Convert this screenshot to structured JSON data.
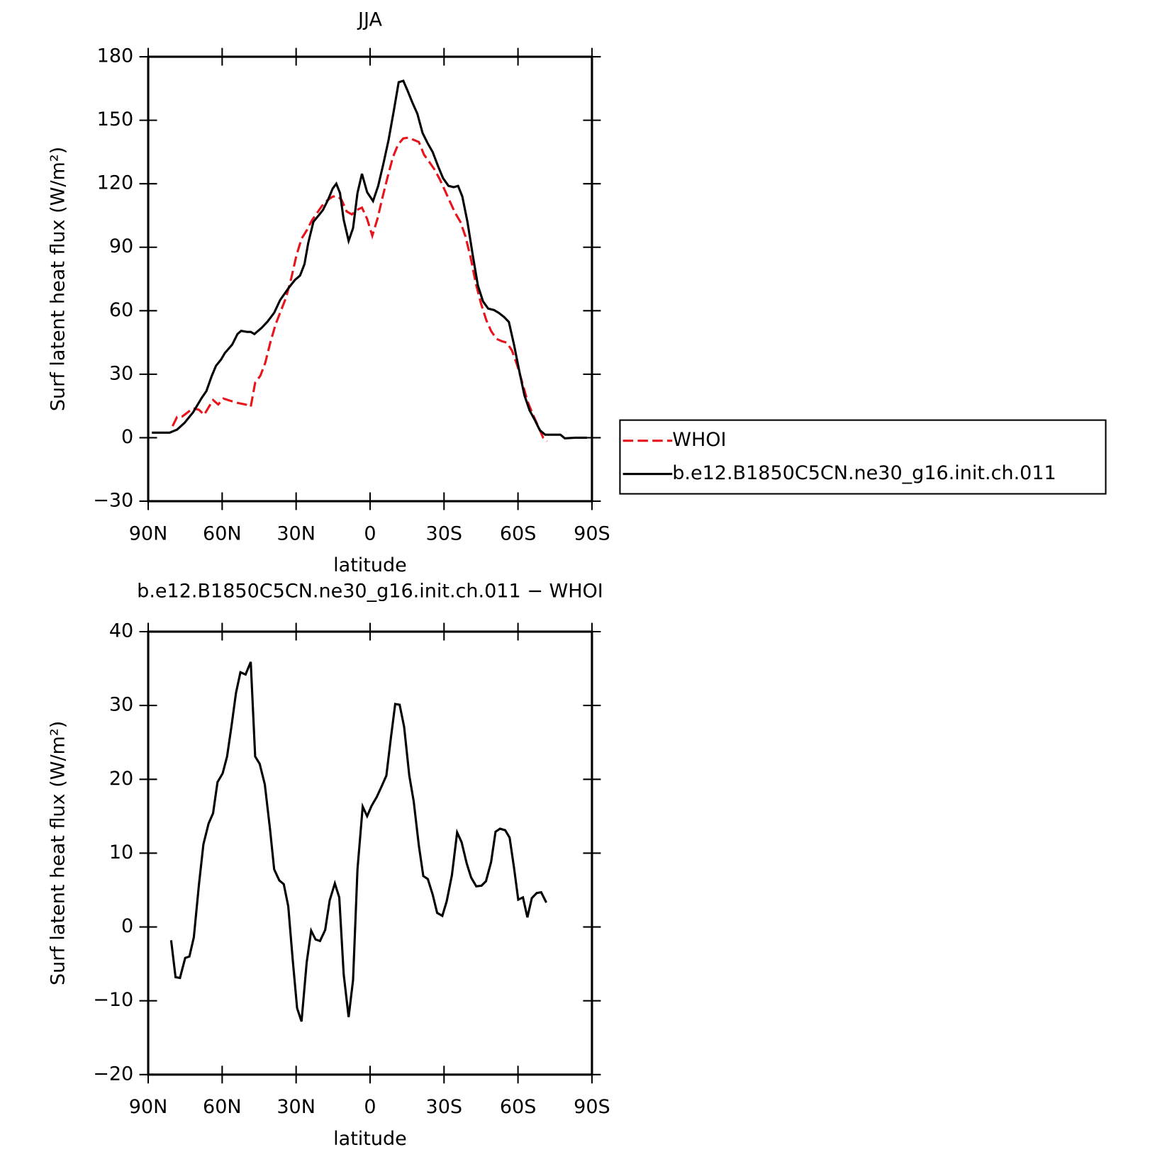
{
  "chart_data": [
    {
      "type": "line",
      "title": "JJA",
      "xlabel": "latitude",
      "ylabel": "Surf latent heat flux (W/m²)",
      "xlim": [
        90,
        -90
      ],
      "xticks": [
        {
          "value": 90,
          "label": "90N"
        },
        {
          "value": 60,
          "label": "60N"
        },
        {
          "value": 30,
          "label": "30N"
        },
        0,
        {
          "value": -30,
          "label": "30S"
        },
        {
          "value": -60,
          "label": "60S"
        },
        {
          "value": -90,
          "label": "90S"
        }
      ],
      "ylim": [
        -30,
        180
      ],
      "yticks": [
        {
          "value": -30,
          "label": "−30"
        },
        0,
        30,
        60,
        90,
        120,
        150,
        180
      ],
      "legend": "right",
      "series": [
        {
          "name": "WHOI",
          "color": "#e8141c",
          "dashed": true,
          "x": [
            80.1,
            78.3,
            76.2,
            74.2,
            71.8,
            69.4,
            67.3,
            65.5,
            63.7,
            61.6,
            59.5,
            56.5,
            53.5,
            50.5,
            48.4,
            46.6,
            44.5,
            42.5,
            40.4,
            38.3,
            36.2,
            34.1,
            32.0,
            29.9,
            27.8,
            25.7,
            23.6,
            21.5,
            19.4,
            17.3,
            15.2,
            13.4,
            11.6,
            9.5,
            7.4,
            5.4,
            3.3,
            1.2,
            -0.9,
            -3.0,
            -5.1,
            -7.2,
            -9.3,
            -11.4,
            -13.5,
            -15.6,
            -17.7,
            -19.8,
            -21.9,
            -24.0,
            -26.1,
            -28.2,
            -30.3,
            -32.4,
            -34.5,
            -36.6,
            -38.7,
            -40.8,
            -42.9,
            -45.0,
            -47.1,
            -49.2,
            -51.3,
            -53.4,
            -55.5,
            -57.6,
            -59.7,
            -61.8,
            -63.9,
            -66.0,
            -68.1,
            -70.2,
            -71.8
          ],
          "values": [
            5.5,
            9.8,
            10,
            11.8,
            13.9,
            13.2,
            10.8,
            14.3,
            17.8,
            15.7,
            18.5,
            17.4,
            16.4,
            15.7,
            14.6,
            26,
            29.3,
            35.5,
            45.3,
            53.6,
            59.9,
            66.2,
            75.2,
            86,
            94,
            97.9,
            102.7,
            106.2,
            109.7,
            112.2,
            113.9,
            114.2,
            112.5,
            106.9,
            105.5,
            107.6,
            108.7,
            103.4,
            95.4,
            103.4,
            113.9,
            123.6,
            132.7,
            138.6,
            141.4,
            141.8,
            140.7,
            139.7,
            133.7,
            130.3,
            126.8,
            122.3,
            117,
            111.5,
            106.2,
            102.1,
            95.1,
            85,
            72.8,
            63.4,
            55.7,
            50.2,
            46.7,
            45.6,
            44.9,
            41.1,
            34.1,
            25.8,
            17.1,
            11.1,
            5.6,
            0,
            -1.7
          ]
        },
        {
          "name": "b.e12.B1850C5CN.ne30_g16.init.ch.011",
          "color": "#000000",
          "dashed": false,
          "x": [
            88.5,
            81.3,
            78.3,
            75.3,
            71.8,
            68.2,
            66.4,
            64.3,
            62.5,
            60.4,
            58.9,
            55.9,
            53.8,
            52.3,
            49.9,
            48.4,
            46.9,
            43.9,
            41.5,
            38.9,
            36.5,
            32.9,
            30.5,
            28.4,
            26.6,
            25.1,
            23.0,
            20.9,
            19.1,
            17.0,
            15.2,
            13.7,
            12.2,
            10.7,
            8.7,
            6.9,
            5.1,
            3.3,
            1.2,
            -1.2,
            -3.3,
            -5.4,
            -7.5,
            -9.6,
            -11.6,
            -13.5,
            -15.3,
            -17.1,
            -19.2,
            -21.3,
            -23.4,
            -25.4,
            -27.5,
            -29.6,
            -31.8,
            -33.9,
            -35.7,
            -37.4,
            -39.5,
            -41.6,
            -43.7,
            -45.8,
            -47.9,
            -50.3,
            -52.3,
            -54.4,
            -56.3,
            -58.4,
            -60.5,
            -62.6,
            -64.7,
            -66.8,
            -68.9,
            -71.0,
            -72.7,
            -74.8,
            -77.2,
            -79.0,
            -83.2,
            -88.0
          ],
          "values": [
            2.4,
            2.4,
            3.8,
            7,
            12,
            19,
            22,
            29,
            34,
            37,
            40,
            44,
            49,
            50.5,
            50,
            50,
            49,
            52,
            55,
            59,
            65,
            71,
            74.5,
            76.6,
            82,
            92,
            102,
            105,
            107.6,
            112.5,
            117.7,
            120,
            115.6,
            103,
            93,
            99,
            115.6,
            124.7,
            116,
            111.8,
            119,
            129.5,
            140.7,
            154.3,
            168,
            168.6,
            163.7,
            158.5,
            153,
            144,
            139,
            135,
            128.5,
            122.6,
            119,
            118.4,
            119,
            114,
            102,
            86.7,
            72,
            64.4,
            61,
            60.3,
            58.9,
            57,
            54.7,
            43.9,
            31.7,
            20,
            12.9,
            8.4,
            3.5,
            1.4,
            1.4,
            1.4,
            1.4,
            -0.3,
            0,
            0
          ]
        }
      ]
    },
    {
      "type": "line",
      "title": "b.e12.B1850C5CN.ne30_g16.init.ch.011 − WHOI",
      "xlabel": "latitude",
      "ylabel": "Surf latent heat flux (W/m²)",
      "xlim": [
        90,
        -90
      ],
      "xticks": [
        {
          "value": 90,
          "label": "90N"
        },
        {
          "value": 60,
          "label": "60N"
        },
        {
          "value": 30,
          "label": "30N"
        },
        0,
        {
          "value": -30,
          "label": "30S"
        },
        {
          "value": -60,
          "label": "60S"
        },
        {
          "value": -90,
          "label": "90S"
        }
      ],
      "ylim": [
        -20,
        40
      ],
      "yticks": [
        {
          "value": -20,
          "label": "−20"
        },
        {
          "value": -10,
          "label": "−10"
        },
        0,
        10,
        20,
        30,
        40
      ],
      "series": [
        {
          "color": "#000000",
          "dashed": false,
          "x": [
            80.7,
            78.9,
            77.1,
            75.0,
            73.3,
            71.5,
            69.4,
            67.6,
            65.5,
            63.7,
            61.9,
            59.8,
            58.0,
            56.2,
            54.4,
            52.6,
            50.5,
            48.4,
            46.6,
            44.8,
            42.7,
            40.6,
            38.9,
            36.8,
            35.0,
            33.2,
            31.4,
            29.6,
            27.8,
            25.7,
            23.9,
            22.1,
            20.3,
            18.2,
            16.4,
            14.3,
            12.5,
            10.7,
            8.7,
            6.9,
            5.1,
            3.0,
            1.2,
            -0.6,
            -2.7,
            -4.5,
            -6.6,
            -8.4,
            -10.2,
            -12.0,
            -13.8,
            -15.9,
            -17.7,
            -19.8,
            -21.6,
            -23.4,
            -25.4,
            -27.2,
            -29.3,
            -31.1,
            -33.2,
            -35.3,
            -37.1,
            -39.2,
            -41.0,
            -43.1,
            -45.2,
            -47.0,
            -49.1,
            -50.9,
            -52.7,
            -54.8,
            -56.6,
            -58.4,
            -60.1,
            -62.0,
            -63.8,
            -65.6,
            -67.6,
            -69.4,
            -71.5
          ],
          "values": [
            -1.8,
            -6.8,
            -6.9,
            -4.2,
            -4.0,
            -1.4,
            5.8,
            11.2,
            14,
            15.4,
            19.6,
            20.8,
            23.1,
            27.2,
            31.7,
            34.5,
            34.2,
            35.9,
            23.1,
            22.1,
            19.3,
            13.3,
            7.8,
            6.3,
            5.8,
            2.8,
            -4.4,
            -11,
            -12.8,
            -4.8,
            -0.5,
            -1.7,
            -1.9,
            -0.4,
            3.6,
            5.9,
            4.0,
            -6.4,
            -12.2,
            -7.2,
            7.8,
            16.3,
            15,
            16.4,
            17.6,
            18.9,
            20.5,
            25.5,
            30.2,
            30.1,
            27.1,
            20.5,
            17,
            11,
            6.9,
            6.5,
            4.4,
            1.9,
            1.5,
            3.5,
            7,
            12.8,
            11.5,
            8.6,
            6.7,
            5.5,
            5.6,
            6.2,
            8.8,
            12.9,
            13.3,
            13.1,
            12.1,
            8.0,
            3.7,
            4.0,
            1.3,
            3.9,
            4.6,
            4.7,
            3.3
          ]
        }
      ]
    }
  ]
}
